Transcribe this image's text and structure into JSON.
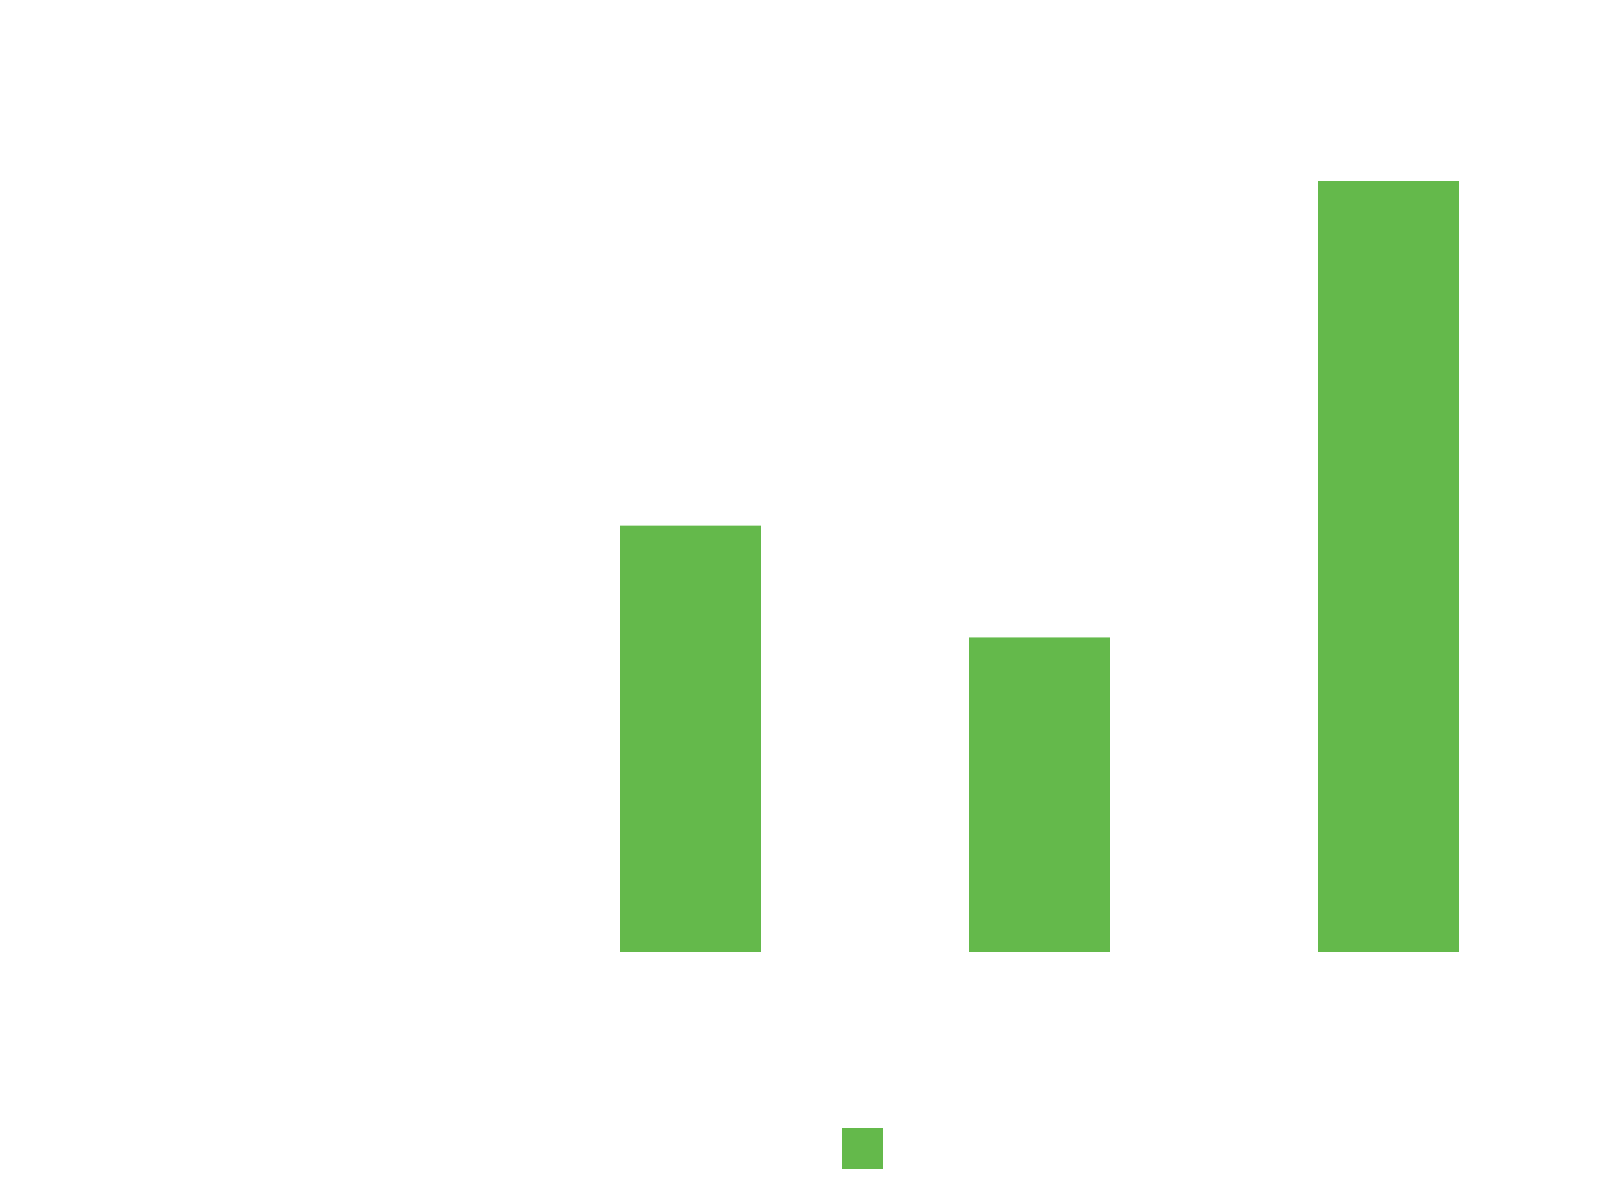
{
  "chart_data": {
    "type": "bar",
    "categories": [
      "",
      "",
      "",
      ""
    ],
    "values": [
      0,
      5.53,
      4.08,
      10
    ],
    "ylim": [
      0,
      10
    ],
    "grid": false,
    "legend": "bottom-center",
    "bar_color": "#64b94b",
    "series": [
      {
        "values": [
          0,
          5.53,
          4.08,
          10
        ],
        "color": "#64b94b"
      }
    ]
  }
}
